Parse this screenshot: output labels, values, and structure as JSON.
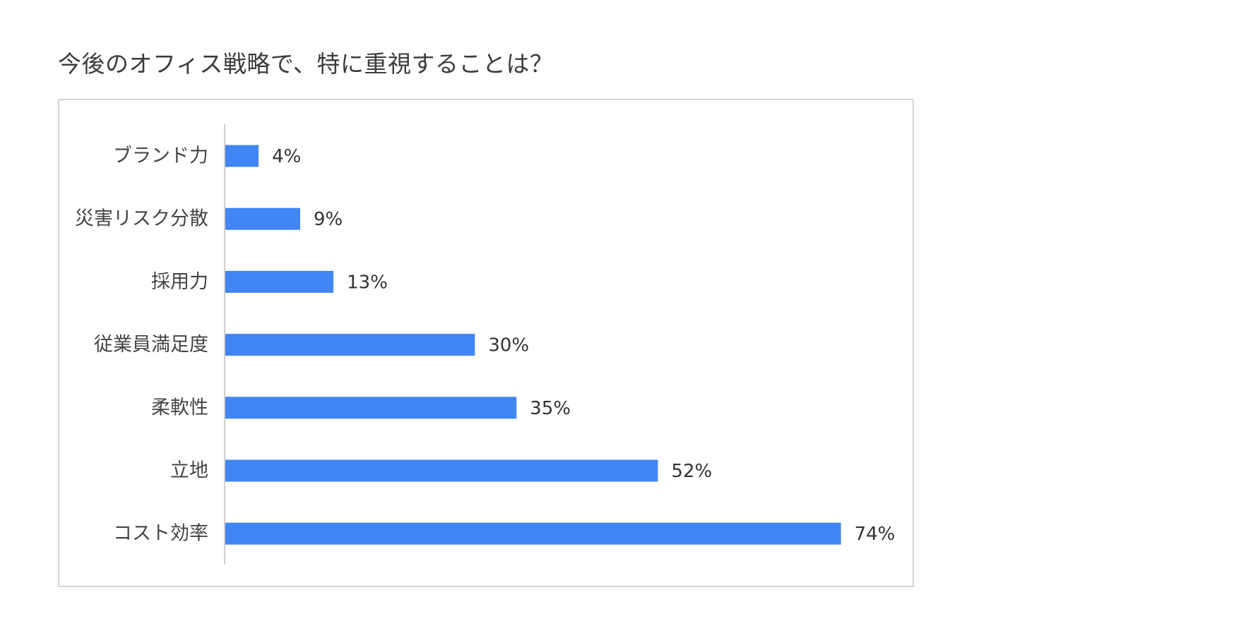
{
  "chart_data": {
    "type": "bar",
    "orientation": "horizontal",
    "title": "今後のオフィス戦略で、特に重視することは？",
    "categories": [
      "ブランド力",
      "災害リスク分散",
      "採用力",
      "従業員満足度",
      "柔軟性",
      "立地",
      "コスト効率"
    ],
    "values": [
      4,
      9,
      13,
      30,
      35,
      52,
      74
    ],
    "value_labels": [
      "4%",
      "9%",
      "13%",
      "30%",
      "35%",
      "52%",
      "74%"
    ],
    "unit": "%",
    "xlim": [
      0,
      80
    ],
    "grid": false,
    "legend": "none",
    "bar_color": "#4285f4"
  }
}
